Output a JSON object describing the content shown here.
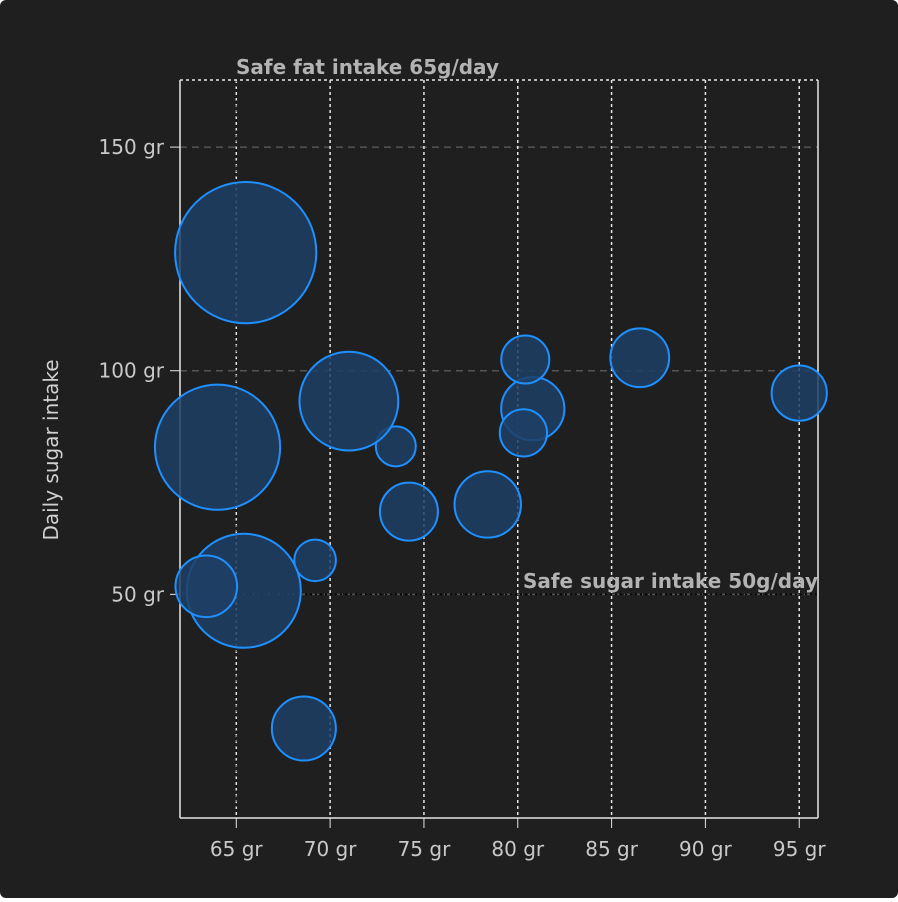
{
  "chart_data": {
    "type": "bubble",
    "title": "",
    "xlabel": "",
    "ylabel": "Daily sugar intake",
    "x_unit_suffix": " gr",
    "y_unit_suffix": " gr",
    "xlim": [
      62,
      96
    ],
    "ylim": [
      0,
      165
    ],
    "x_ticks": [
      65,
      70,
      75,
      80,
      85,
      90,
      95
    ],
    "y_ticks": [
      50,
      100,
      150
    ],
    "x_tick_labels": [
      "65 gr",
      "70 gr",
      "75 gr",
      "80 gr",
      "85 gr",
      "90 gr",
      "95 gr"
    ],
    "y_tick_labels": [
      "50 gr",
      "100 gr",
      "150 gr"
    ],
    "grid": true,
    "colors": {
      "background": "#1f1f1f",
      "bubble_fill": "#1f3f66",
      "bubble_stroke": "#1e90ff",
      "axis_line": "#e6e6e6",
      "x_grid": "#e6e6e6",
      "y_grid": "#555555"
    },
    "series": [
      {
        "points": [
          {
            "x": 95.0,
            "y": 95.0,
            "z": 13.8
          },
          {
            "x": 86.5,
            "y": 102.9,
            "z": 14.7
          },
          {
            "x": 80.8,
            "y": 91.5,
            "z": 15.8
          },
          {
            "x": 80.4,
            "y": 102.5,
            "z": 12.0
          },
          {
            "x": 80.3,
            "y": 86.1,
            "z": 11.8
          },
          {
            "x": 78.4,
            "y": 70.1,
            "z": 16.6
          },
          {
            "x": 74.2,
            "y": 68.5,
            "z": 14.5
          },
          {
            "x": 73.5,
            "y": 83.1,
            "z": 10.0
          },
          {
            "x": 71.0,
            "y": 93.2,
            "z": 24.7
          },
          {
            "x": 69.2,
            "y": 57.6,
            "z": 10.4
          },
          {
            "x": 68.6,
            "y": 20.0,
            "z": 16.0
          },
          {
            "x": 65.5,
            "y": 126.4,
            "z": 35.3
          },
          {
            "x": 65.4,
            "y": 50.8,
            "z": 28.5
          },
          {
            "x": 63.4,
            "y": 51.8,
            "z": 15.4
          },
          {
            "x": 64.0,
            "y": 82.9,
            "z": 31.3
          }
        ]
      }
    ],
    "annotations": {
      "x_plotline": {
        "value": 65,
        "label": "Safe fat intake 65g/day"
      },
      "y_plotline": {
        "value": 50,
        "label": "Safe sugar intake 50g/day"
      }
    }
  }
}
